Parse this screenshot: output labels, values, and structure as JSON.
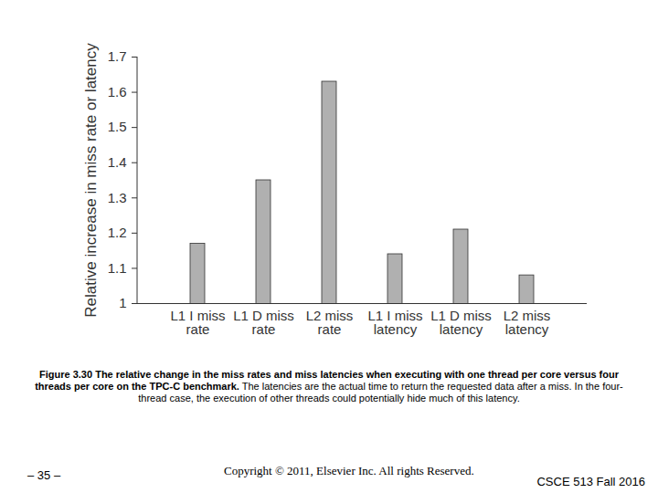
{
  "chart_data": {
    "type": "bar",
    "y_label": "Relative increase in miss rate or latency",
    "categories": [
      "L1 I miss rate",
      "L1 D miss rate",
      "L2 miss rate",
      "L1 I miss latency",
      "L1 D miss latency",
      "L2 miss latency"
    ],
    "values": [
      1.17,
      1.35,
      1.63,
      1.14,
      1.21,
      1.08
    ],
    "color": "#b0b0b0",
    "ylim": [
      1,
      1.7
    ],
    "yticks": [
      1,
      1.1,
      1.2,
      1.3,
      1.4,
      1.5,
      1.6,
      1.7
    ],
    "grid": false
  },
  "caption": {
    "bold": "Figure 3.30 The relative change in the miss rates and miss latencies when executing with one thread per core versus four threads per core on the TPC-C benchmark.",
    "text": "The latencies are the actual time to return the requested data after a miss. In the four-thread case, the execution of other threads could potentially hide much of this latency."
  },
  "footer": {
    "page": "– 35 –",
    "copyright": "Copyright © 2011, Elsevier Inc. All rights Reserved.",
    "course": "CSCE 513 Fall 2016"
  }
}
